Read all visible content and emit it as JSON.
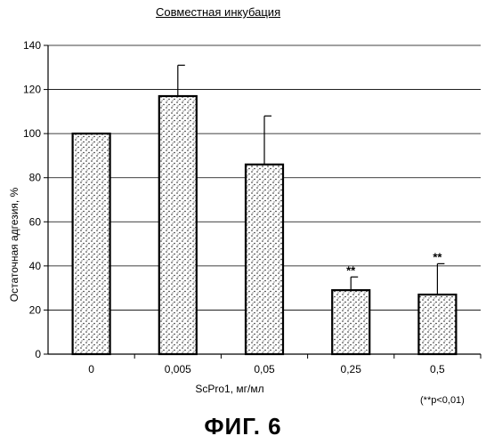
{
  "chart_data": {
    "type": "bar",
    "title": "Совместная инкубация",
    "xlabel": "ScPro1, мг/мл",
    "ylabel": "Остаточная адгезия, %",
    "categories": [
      "0",
      "0,005",
      "0,05",
      "0,25",
      "0,5"
    ],
    "values": [
      100,
      117,
      86,
      29,
      27
    ],
    "error_upper": [
      0,
      14,
      22,
      6,
      14
    ],
    "annotations": [
      "",
      "",
      "",
      "**",
      "**"
    ],
    "ylim": [
      0,
      140
    ],
    "yticks": [
      0,
      20,
      40,
      60,
      80,
      100,
      120,
      140
    ],
    "grid": true,
    "footnote": "(**p<0,01)"
  },
  "figure_label": "ФИГ. 6"
}
